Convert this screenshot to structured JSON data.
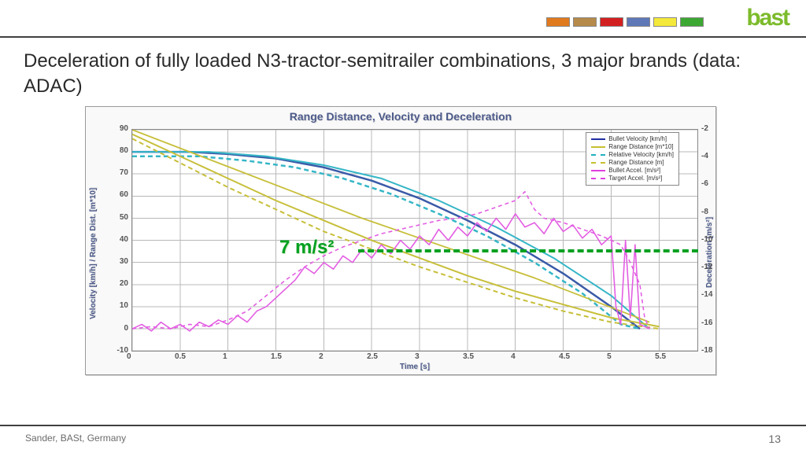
{
  "header": {
    "logo_text": "bast",
    "logo_color": "#7cbb2b",
    "strip_colors": [
      "#e07a1f",
      "#b58a4a",
      "#d22020",
      "#5f78b8",
      "#f4e93a",
      "#3da733"
    ]
  },
  "title": "Deceleration of fully loaded N3-tractor-semitrailer combinations, 3 major brands (data: ADAC)",
  "footer": {
    "author": "Sander, BASt, Germany",
    "page": "13"
  },
  "chart": {
    "type": "line",
    "title": "Range Distance, Velocity and Deceleration",
    "background_color": "#ffffff",
    "grid_color": "#b8b8b8",
    "x_axis": {
      "label": "Time [s]",
      "min": 0,
      "max": 5.9,
      "tick_step": 0.5,
      "ticks": [
        "0",
        "0.5",
        "1",
        "1.5",
        "2",
        "2.5",
        "3",
        "3.5",
        "4",
        "4.5",
        "5",
        "5.5"
      ]
    },
    "y_left": {
      "label": "Velocity [km/h] / Range Dist. [m*10]",
      "min": -10,
      "max": 90,
      "tick_step": 10,
      "ticks": [
        "-10",
        "0",
        "10",
        "20",
        "30",
        "40",
        "50",
        "60",
        "70",
        "80",
        "90"
      ]
    },
    "y_right": {
      "label": "Deceleration [m/s²]",
      "min": -2,
      "max": -18,
      "tick_step": -2,
      "ticks": [
        "-2",
        "-4",
        "-6",
        "-8",
        "-10",
        "-12",
        "-14",
        "-16",
        "-18"
      ]
    },
    "annotation": {
      "text": "7 m/s²",
      "y_value": 35,
      "color": "#00a020",
      "fontsize": 24
    },
    "legend": [
      {
        "label": "Bullet Velocity [km/h]",
        "color": "#2030a0",
        "dash": "solid"
      },
      {
        "label": "Range Distance [m*10]",
        "color": "#c8c030",
        "dash": "solid"
      },
      {
        "label": "Relative Velocity [km/h]",
        "color": "#20b0c0",
        "dash": "dashed"
      },
      {
        "label": "Range Distance [m]",
        "color": "#c8c030",
        "dash": "dashed"
      },
      {
        "label": "Bullet Accel. [m/s²]",
        "color": "#e040e0",
        "dash": "solid"
      },
      {
        "label": "Target Accel. [m/s²]",
        "color": "#e040e0",
        "dash": "dashed"
      }
    ],
    "series": {
      "velocity_blue": {
        "color": "#3a5aa8",
        "width": 2.5,
        "dash": "",
        "points": [
          [
            0,
            80
          ],
          [
            0.6,
            80
          ],
          [
            1.0,
            79
          ],
          [
            1.5,
            77
          ],
          [
            2.0,
            73
          ],
          [
            2.5,
            67
          ],
          [
            3.0,
            59
          ],
          [
            3.5,
            49
          ],
          [
            4.0,
            38
          ],
          [
            4.5,
            25
          ],
          [
            5.0,
            10
          ],
          [
            5.3,
            0
          ]
        ]
      },
      "velocity_cyan": {
        "color": "#35b6c7",
        "width": 2.5,
        "dash": "6 4",
        "points": [
          [
            0,
            78
          ],
          [
            0.7,
            78
          ],
          [
            1.2,
            76
          ],
          [
            1.7,
            73
          ],
          [
            2.2,
            68
          ],
          [
            2.7,
            61
          ],
          [
            3.2,
            52
          ],
          [
            3.7,
            42
          ],
          [
            4.2,
            30
          ],
          [
            4.7,
            16
          ],
          [
            5.1,
            2
          ],
          [
            5.3,
            0
          ]
        ]
      },
      "velocity_cyan2": {
        "color": "#35b6c7",
        "width": 2,
        "dash": "",
        "points": [
          [
            0,
            80
          ],
          [
            0.8,
            80
          ],
          [
            1.4,
            78
          ],
          [
            2.0,
            74
          ],
          [
            2.6,
            68
          ],
          [
            3.2,
            58
          ],
          [
            3.8,
            46
          ],
          [
            4.4,
            32
          ],
          [
            5.0,
            15
          ],
          [
            5.4,
            0
          ]
        ]
      },
      "range_solid": {
        "color": "#c7bf3a",
        "width": 2,
        "dash": "",
        "points": [
          [
            0,
            88
          ],
          [
            0.5,
            78
          ],
          [
            1.0,
            68
          ],
          [
            1.5,
            58
          ],
          [
            2.0,
            49
          ],
          [
            2.5,
            40
          ],
          [
            3.0,
            32
          ],
          [
            3.5,
            24
          ],
          [
            4.0,
            17
          ],
          [
            4.5,
            11
          ],
          [
            5.0,
            5
          ],
          [
            5.5,
            1
          ]
        ]
      },
      "range_dash": {
        "color": "#c7bf3a",
        "width": 2,
        "dash": "6 4",
        "points": [
          [
            0,
            86
          ],
          [
            0.5,
            75
          ],
          [
            1.0,
            64
          ],
          [
            1.5,
            54
          ],
          [
            2.0,
            44
          ],
          [
            2.5,
            36
          ],
          [
            3.0,
            28
          ],
          [
            3.5,
            21
          ],
          [
            4.0,
            14
          ],
          [
            4.5,
            8
          ],
          [
            5.0,
            3
          ],
          [
            5.5,
            0
          ]
        ]
      },
      "range_solid2": {
        "color": "#c7bf3a",
        "width": 1.8,
        "dash": "",
        "points": [
          [
            0,
            90
          ],
          [
            0.6,
            80
          ],
          [
            1.2,
            70
          ],
          [
            1.8,
            60
          ],
          [
            2.4,
            50
          ],
          [
            3.0,
            41
          ],
          [
            3.6,
            32
          ],
          [
            4.2,
            23
          ],
          [
            4.8,
            13
          ],
          [
            5.4,
            3
          ]
        ]
      },
      "decel_a": {
        "color": "#e35ee3",
        "width": 1.6,
        "dash": "",
        "points": [
          [
            0,
            0
          ],
          [
            0.1,
            2
          ],
          [
            0.2,
            -1
          ],
          [
            0.3,
            3
          ],
          [
            0.4,
            0
          ],
          [
            0.5,
            2
          ],
          [
            0.6,
            -1
          ],
          [
            0.7,
            3
          ],
          [
            0.8,
            1
          ],
          [
            0.9,
            4
          ],
          [
            1.0,
            2
          ],
          [
            1.1,
            6
          ],
          [
            1.2,
            3
          ],
          [
            1.3,
            8
          ],
          [
            1.4,
            10
          ],
          [
            1.5,
            14
          ],
          [
            1.6,
            18
          ],
          [
            1.7,
            22
          ],
          [
            1.8,
            28
          ],
          [
            1.9,
            25
          ],
          [
            2.0,
            30
          ],
          [
            2.1,
            27
          ],
          [
            2.2,
            33
          ],
          [
            2.3,
            30
          ],
          [
            2.4,
            36
          ],
          [
            2.5,
            32
          ],
          [
            2.6,
            38
          ],
          [
            2.7,
            34
          ],
          [
            2.8,
            40
          ],
          [
            2.9,
            36
          ],
          [
            3.0,
            42
          ],
          [
            3.1,
            38
          ],
          [
            3.2,
            45
          ],
          [
            3.3,
            40
          ],
          [
            3.4,
            46
          ],
          [
            3.5,
            42
          ],
          [
            3.6,
            48
          ],
          [
            3.7,
            44
          ],
          [
            3.8,
            50
          ],
          [
            3.9,
            45
          ],
          [
            4.0,
            52
          ],
          [
            4.1,
            46
          ],
          [
            4.2,
            48
          ],
          [
            4.3,
            43
          ],
          [
            4.4,
            50
          ],
          [
            4.5,
            44
          ],
          [
            4.6,
            47
          ],
          [
            4.7,
            41
          ],
          [
            4.8,
            45
          ],
          [
            4.9,
            38
          ],
          [
            5.0,
            42
          ],
          [
            5.05,
            10
          ],
          [
            5.1,
            2
          ],
          [
            5.15,
            40
          ],
          [
            5.2,
            5
          ],
          [
            5.25,
            38
          ],
          [
            5.3,
            2
          ],
          [
            5.4,
            0
          ]
        ]
      },
      "decel_b": {
        "color": "#e35ee3",
        "width": 1.6,
        "dash": "5 4",
        "points": [
          [
            0,
            0
          ],
          [
            0.2,
            1
          ],
          [
            0.4,
            0
          ],
          [
            0.6,
            2
          ],
          [
            0.8,
            1
          ],
          [
            1.0,
            4
          ],
          [
            1.2,
            8
          ],
          [
            1.4,
            15
          ],
          [
            1.6,
            22
          ],
          [
            1.8,
            28
          ],
          [
            2.0,
            33
          ],
          [
            2.2,
            37
          ],
          [
            2.4,
            40
          ],
          [
            2.6,
            43
          ],
          [
            2.8,
            45
          ],
          [
            3.0,
            47
          ],
          [
            3.2,
            49
          ],
          [
            3.4,
            50
          ],
          [
            3.6,
            52
          ],
          [
            3.8,
            55
          ],
          [
            4.0,
            58
          ],
          [
            4.1,
            62
          ],
          [
            4.2,
            54
          ],
          [
            4.3,
            50
          ],
          [
            4.5,
            48
          ],
          [
            4.7,
            45
          ],
          [
            4.9,
            42
          ],
          [
            5.1,
            38
          ],
          [
            5.2,
            30
          ],
          [
            5.3,
            20
          ],
          [
            5.35,
            5
          ],
          [
            5.4,
            0
          ]
        ]
      }
    }
  }
}
